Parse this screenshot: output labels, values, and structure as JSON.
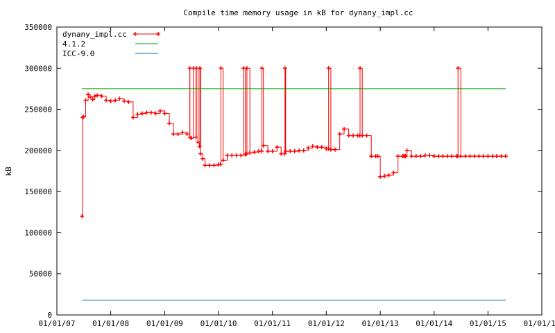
{
  "chart_data": {
    "type": "line",
    "title": "Compile time memory usage in kB for dynany_impl.cc",
    "xlabel": "",
    "ylabel": "kB",
    "ylim": [
      0,
      350000
    ],
    "yticks": [
      0,
      50000,
      100000,
      150000,
      200000,
      250000,
      300000,
      350000
    ],
    "xlim": [
      "2007-01-01",
      "2016-01-01"
    ],
    "xtick_labels": [
      "01/01/07",
      "01/01/08",
      "01/01/09",
      "01/01/10",
      "01/01/11",
      "01/01/12",
      "01/01/13",
      "01/01/14",
      "01/01/15",
      "01/01/16"
    ],
    "legend_position": "top-left",
    "grid": false,
    "series": [
      {
        "name": "dynany_impl.cc",
        "color": "#ff0000",
        "marker": "plus",
        "x": [
          "2007-06-20",
          "2007-06-24",
          "2007-07-01",
          "2007-07-15",
          "2007-08-01",
          "2007-08-15",
          "2007-09-01",
          "2007-09-15",
          "2007-10-01",
          "2007-11-01",
          "2007-12-01",
          "2008-01-01",
          "2008-02-01",
          "2008-03-01",
          "2008-04-01",
          "2008-05-01",
          "2008-06-01",
          "2008-07-01",
          "2008-08-01",
          "2008-09-01",
          "2008-10-01",
          "2008-11-01",
          "2008-12-01",
          "2009-01-01",
          "2009-02-01",
          "2009-03-01",
          "2009-04-01",
          "2009-05-01",
          "2009-06-01",
          "2009-06-20",
          "2009-06-21",
          "2009-07-01",
          "2009-07-15",
          "2009-08-01",
          "2009-08-03",
          "2009-08-15",
          "2009-08-25",
          "2009-08-27",
          "2009-09-01",
          "2009-09-15",
          "2009-10-01",
          "2009-11-01",
          "2009-12-01",
          "2010-01-01",
          "2010-01-15",
          "2010-01-17",
          "2010-02-01",
          "2010-03-01",
          "2010-04-01",
          "2010-05-01",
          "2010-06-01",
          "2010-06-20",
          "2010-07-01",
          "2010-07-10",
          "2010-07-12",
          "2010-08-01",
          "2010-09-01",
          "2010-10-01",
          "2010-10-20",
          "2010-10-22",
          "2010-11-01",
          "2010-12-01",
          "2011-01-01",
          "2011-02-01",
          "2011-03-01",
          "2011-03-25",
          "2011-03-27",
          "2011-04-01",
          "2011-05-01",
          "2011-06-01",
          "2011-07-01",
          "2011-08-01",
          "2011-09-01",
          "2011-10-01",
          "2011-11-01",
          "2011-12-01",
          "2012-01-01",
          "2012-01-15",
          "2012-01-17",
          "2012-02-01",
          "2012-03-01",
          "2012-04-01",
          "2012-05-01",
          "2012-06-01",
          "2012-07-01",
          "2012-08-01",
          "2012-08-15",
          "2012-08-17",
          "2012-09-01",
          "2012-10-01",
          "2012-11-01",
          "2012-12-01",
          "2012-12-15",
          "2013-01-01",
          "2013-02-01",
          "2013-03-01",
          "2013-04-01",
          "2013-05-01",
          "2013-06-01",
          "2013-06-10",
          "2013-06-12",
          "2013-06-20",
          "2013-06-22",
          "2013-07-01",
          "2013-08-01",
          "2013-09-01",
          "2013-10-01",
          "2013-11-01",
          "2013-12-01",
          "2014-01-01",
          "2014-02-01",
          "2014-03-01",
          "2014-04-01",
          "2014-05-01",
          "2014-06-01",
          "2014-06-10",
          "2014-06-12",
          "2014-07-01",
          "2014-08-01",
          "2014-09-01",
          "2014-10-01",
          "2014-11-01",
          "2014-12-01",
          "2015-01-01",
          "2015-02-01",
          "2015-03-01",
          "2015-04-01",
          "2015-05-01"
        ],
        "y": [
          120000,
          240000,
          241000,
          261000,
          268000,
          265000,
          262000,
          266000,
          267000,
          266000,
          261000,
          260000,
          261000,
          263000,
          260000,
          259000,
          240000,
          244000,
          245000,
          246000,
          246000,
          245000,
          248000,
          245000,
          233000,
          220000,
          220000,
          222000,
          220000,
          300000,
          216000,
          215000,
          300000,
          216000,
          300000,
          210000,
          205000,
          300000,
          196000,
          190000,
          182000,
          182000,
          182000,
          183000,
          183000,
          300000,
          188000,
          194000,
          194000,
          194000,
          194000,
          300000,
          195000,
          196000,
          300000,
          197000,
          198000,
          199000,
          199000,
          300000,
          206000,
          199000,
          199000,
          204000,
          196000,
          196000,
          300000,
          199000,
          199000,
          199000,
          200000,
          200000,
          203000,
          205000,
          204000,
          204000,
          202000,
          202000,
          300000,
          201000,
          201000,
          220000,
          226000,
          218000,
          218000,
          218000,
          218000,
          300000,
          218000,
          218000,
          193000,
          193000,
          193000,
          168000,
          169000,
          170000,
          173000,
          193000,
          193000,
          193000,
          193000,
          193000,
          193000,
          200000,
          193000,
          193000,
          193000,
          194000,
          194000,
          193000,
          193000,
          193000,
          193000,
          193000,
          193000,
          193000,
          300000,
          193000,
          193000,
          193000,
          193000,
          193000,
          193000,
          193000,
          193000,
          193000,
          193000,
          193000
        ]
      },
      {
        "name": "4.1.2",
        "color": "#00a000",
        "x": [
          "2007-06-20",
          "2015-05-01"
        ],
        "y": [
          275000,
          275000
        ]
      },
      {
        "name": "ICC-9.0",
        "color": "#0060c0",
        "x": [
          "2007-06-20",
          "2015-05-01"
        ],
        "y": [
          18000,
          18000
        ]
      }
    ]
  }
}
